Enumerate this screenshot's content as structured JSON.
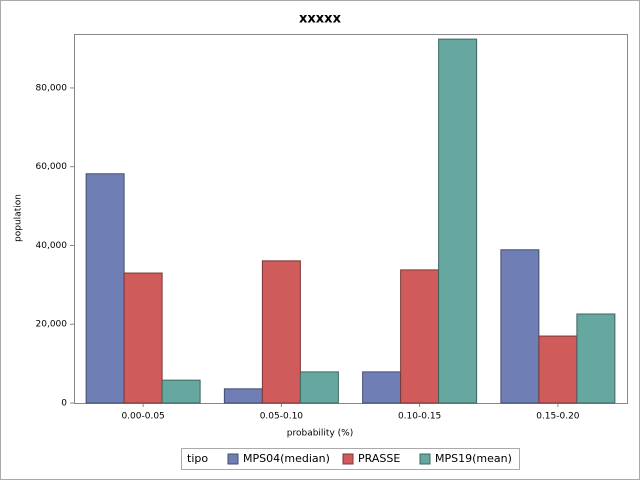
{
  "chart_data": {
    "type": "bar",
    "title": "xxxxx",
    "x_label": "probability (%)",
    "y_label": "population",
    "categories": [
      "0.00-0.05",
      "0.05-0.10",
      "0.10-0.15",
      "0.15-0.20"
    ],
    "legend_title": "tipo",
    "series": [
      {
        "name": "MPS04(median)",
        "color": "#6f7fb5",
        "values": [
          58200,
          3600,
          7900,
          38900
        ]
      },
      {
        "name": "PRASSE",
        "color": "#d05b5b",
        "values": [
          33000,
          36100,
          33800,
          17000
        ]
      },
      {
        "name": "MPS19(mean)",
        "color": "#66a8a0",
        "values": [
          5800,
          7900,
          92400,
          22600
        ]
      }
    ],
    "ylim": [
      0,
      93700
    ],
    "yticks": [
      0,
      {
        "value": 20000,
        "label": "20,000"
      },
      {
        "value": 40000,
        "label": "40,000"
      },
      {
        "value": 60000,
        "label": "60,000"
      },
      {
        "value": 80000,
        "label": "80,000"
      }
    ],
    "grid": false,
    "legend": "bottom"
  }
}
